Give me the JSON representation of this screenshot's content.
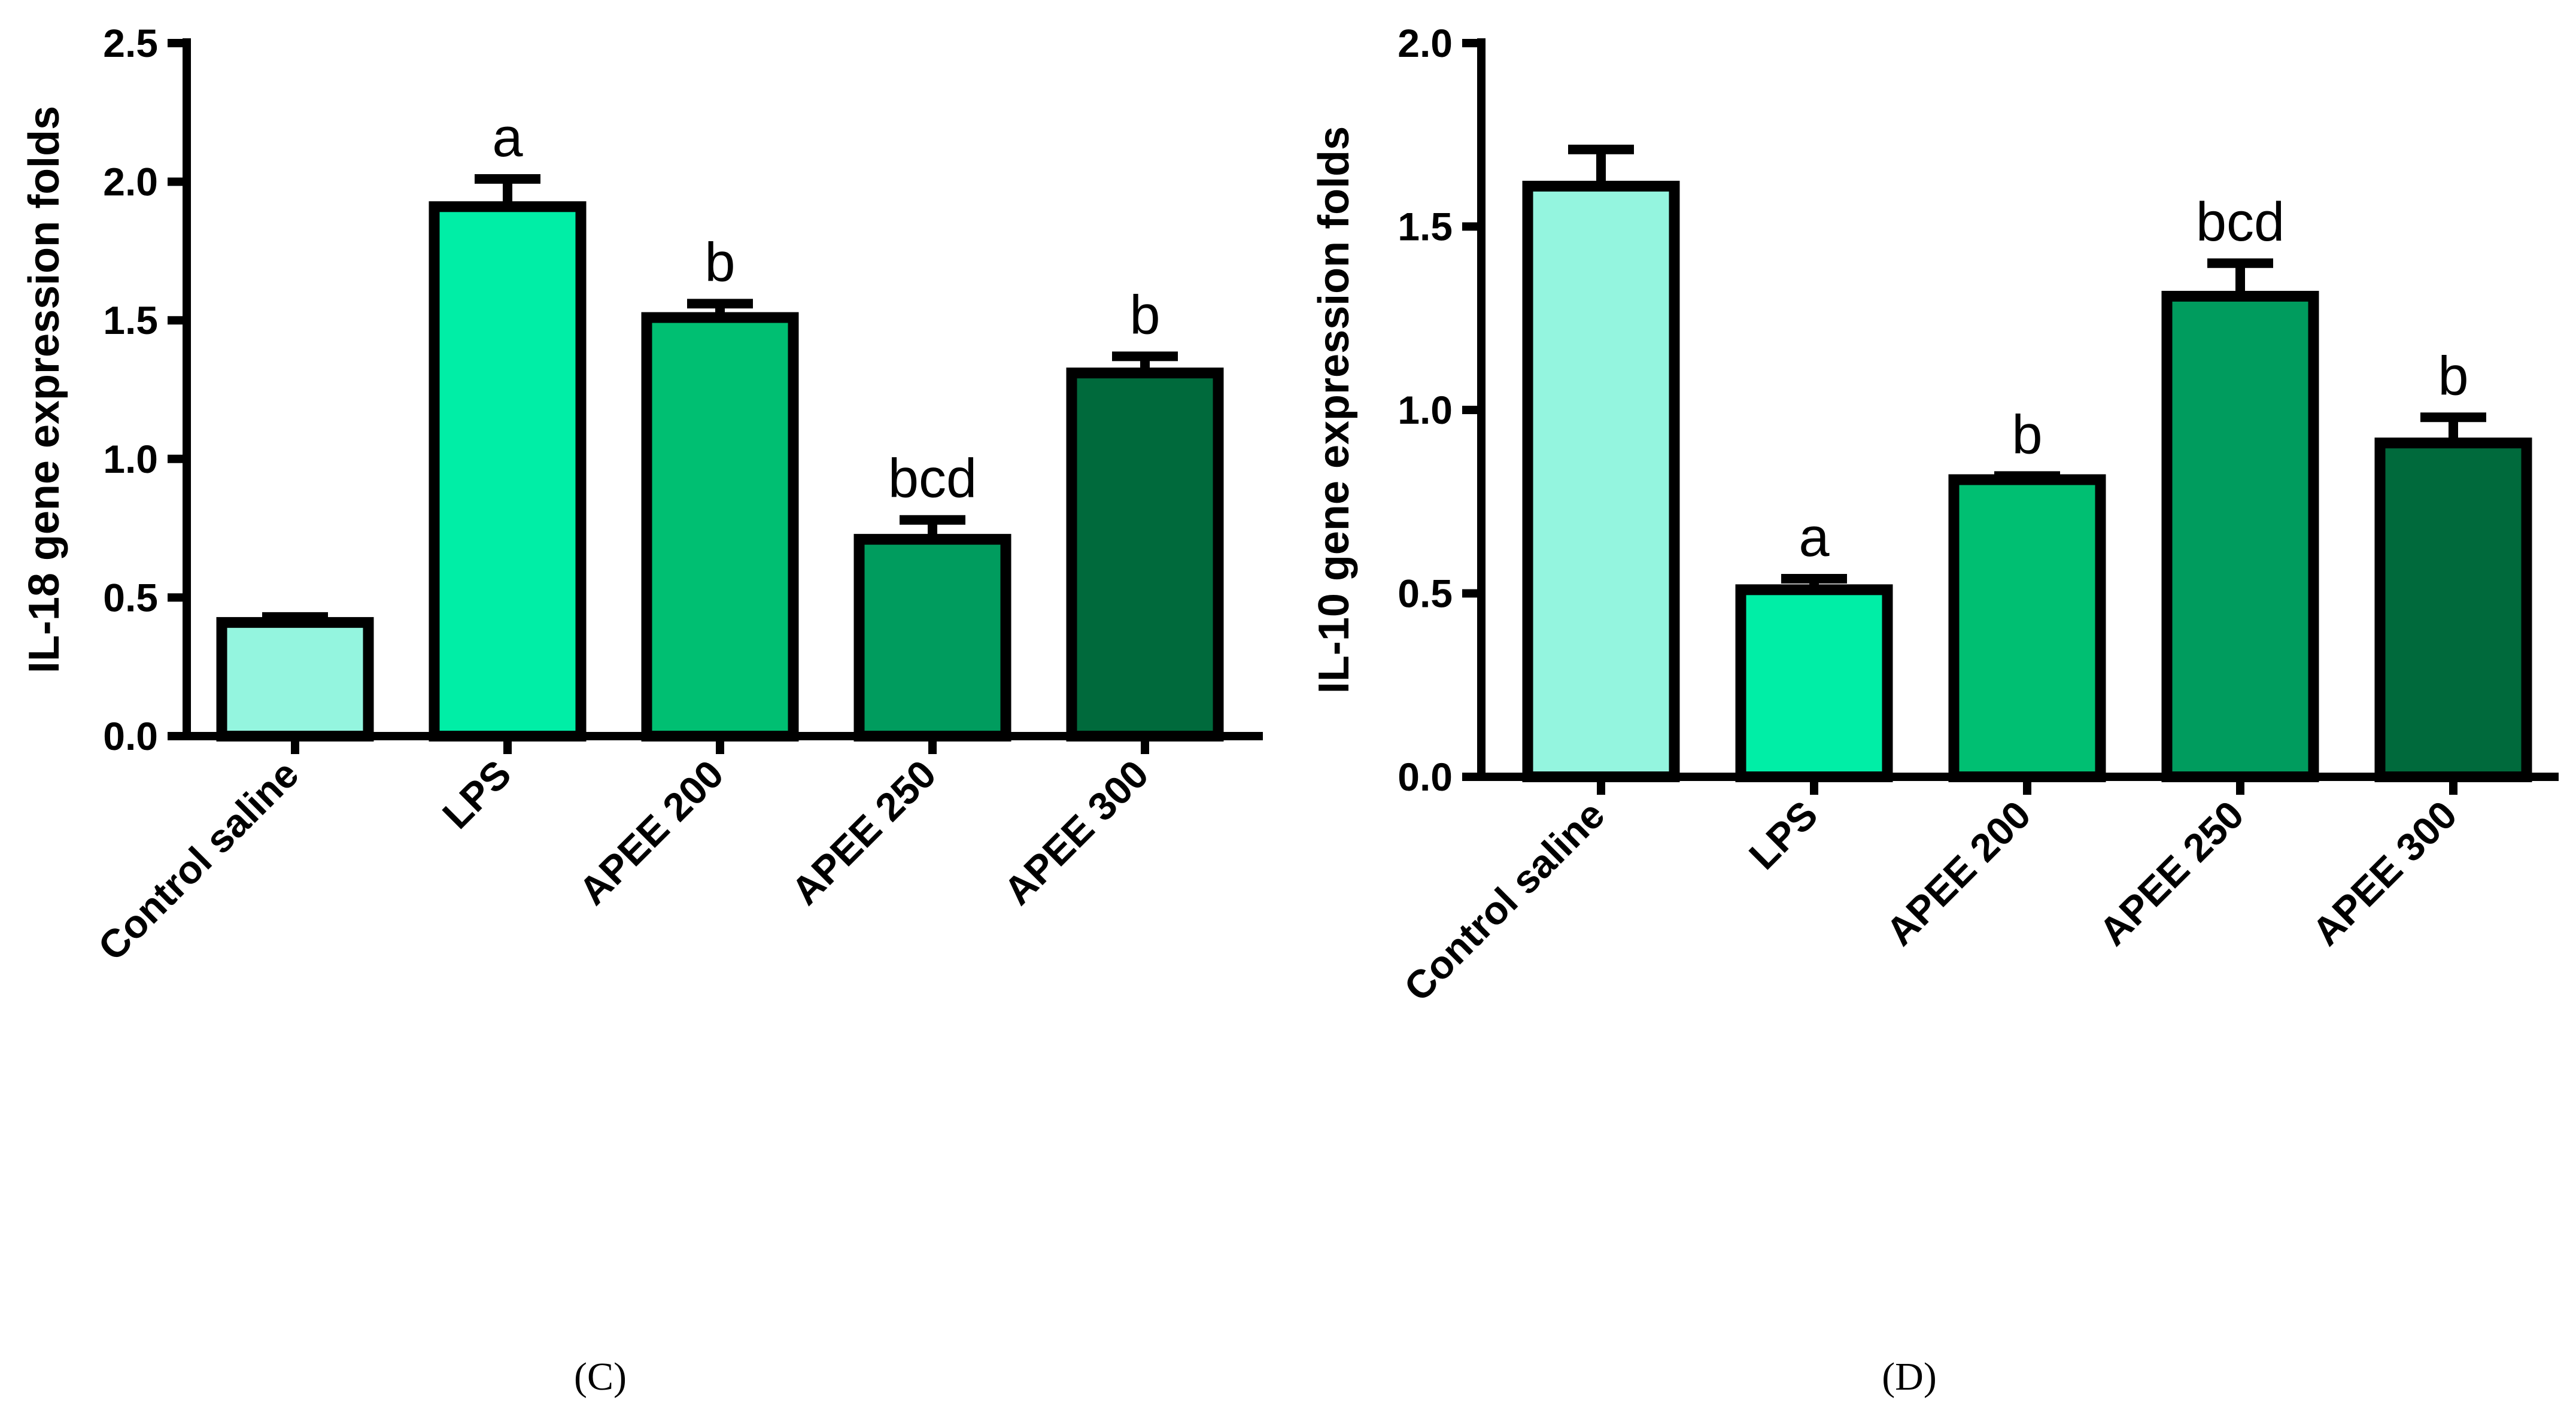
{
  "chart_data": [
    {
      "type": "bar",
      "panel_label": "(C)",
      "ylabel": "IL-18 gene expression folds",
      "xlabel": "",
      "ylim": [
        0,
        2.5
      ],
      "yticks": [
        0.0,
        0.5,
        1.0,
        1.5,
        2.0,
        2.5
      ],
      "ytick_labels": [
        "0.0",
        "0.5",
        "1.0",
        "1.5",
        "2.0",
        "2.5"
      ],
      "categories": [
        "Control saline",
        "LPS",
        "APEE 200",
        "APEE 250",
        "APEE 300"
      ],
      "values": [
        0.41,
        1.91,
        1.51,
        0.71,
        1.31
      ],
      "errors": [
        0.02,
        0.1,
        0.05,
        0.07,
        0.06
      ],
      "annotations": [
        "",
        "a",
        "b",
        "bcd",
        "b"
      ],
      "colors": [
        "#94f5df",
        "#00eea6",
        "#00bf72",
        "#009c5e",
        "#006a3c"
      ]
    },
    {
      "type": "bar",
      "panel_label": "(D)",
      "ylabel": "IL-10 gene expression folds",
      "xlabel": "",
      "ylim": [
        0,
        2.0
      ],
      "yticks": [
        0.0,
        0.5,
        1.0,
        1.5,
        2.0
      ],
      "ytick_labels": [
        "0.0",
        "0.5",
        "1.0",
        "1.5",
        "2.0"
      ],
      "categories": [
        "Control saline",
        "LPS",
        "APEE 200",
        "APEE 250",
        "APEE 300"
      ],
      "values": [
        1.61,
        0.51,
        0.81,
        1.31,
        0.91
      ],
      "errors": [
        0.1,
        0.03,
        0.01,
        0.09,
        0.07
      ],
      "annotations": [
        "",
        "a",
        "b",
        "bcd",
        "b"
      ],
      "colors": [
        "#94f5df",
        "#00eea6",
        "#00bf72",
        "#009c5e",
        "#006a3c"
      ]
    }
  ]
}
